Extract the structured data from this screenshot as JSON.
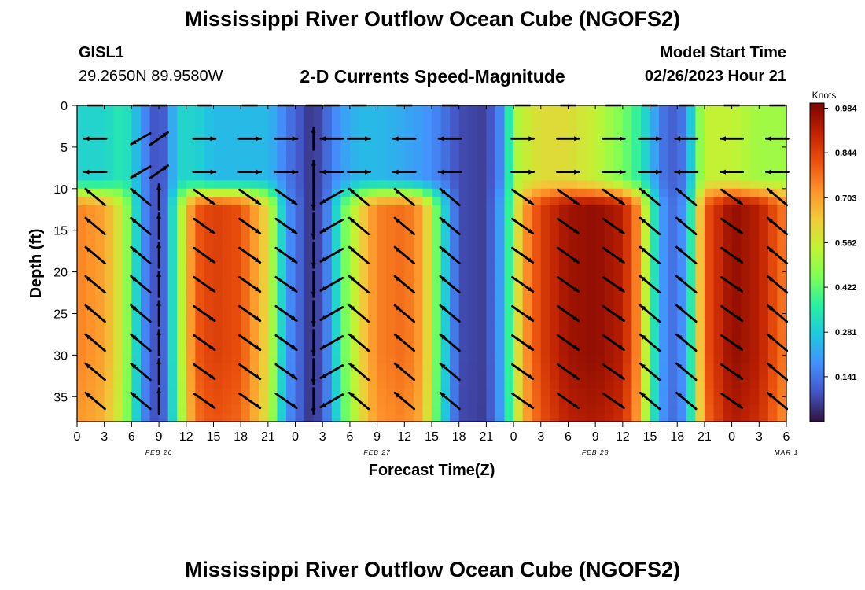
{
  "header": {
    "title": "Mississippi River Outflow Ocean Cube (NGOFS2)",
    "station": "GISL1",
    "location": "29.2650N  89.9580W",
    "plot_title": "2-D Currents Speed-Magnitude",
    "start_label": "Model Start Time",
    "start_value": "02/26/2023 Hour 21"
  },
  "footer_title": "Mississippi River Outflow Ocean Cube (NGOFS2)",
  "chart_data": {
    "type": "heatmap",
    "title": "2-D Currents Speed-Magnitude",
    "xlabel": "Forecast Time(Z)",
    "ylabel": "Depth (ft)",
    "x_tick_labels": [
      "0",
      "3",
      "6",
      "9",
      "12",
      "15",
      "18",
      "21",
      "0",
      "3",
      "6",
      "9",
      "12",
      "15",
      "18",
      "21",
      "0",
      "3",
      "6",
      "9",
      "12",
      "15",
      "18",
      "21",
      "0",
      "3",
      "6"
    ],
    "date_labels": [
      {
        "label": "FEB 26",
        "hour": 9
      },
      {
        "label": "FEB 27",
        "hour": 33
      },
      {
        "label": "FEB 28",
        "hour": 57
      },
      {
        "label": "MAR 1",
        "hour": 78
      }
    ],
    "xlim_hours": [
      0,
      78
    ],
    "ylim_ft": [
      38,
      0
    ],
    "y_ticks": [
      0,
      5,
      10,
      15,
      20,
      25,
      30,
      35
    ],
    "colorbar": {
      "label": "Knots",
      "ticks": [
        "0.984",
        "0.844",
        "0.703",
        "0.562",
        "0.422",
        "0.281",
        "0.141"
      ],
      "range": [
        0,
        1.0
      ],
      "colors": [
        "#30123b",
        "#4454c4",
        "#4490fe",
        "#1fc8de",
        "#29efa2",
        "#7dff56",
        "#c1f334",
        "#f1ca3a",
        "#fe922a",
        "#ea4f0d",
        "#be2102",
        "#7a0403"
      ]
    },
    "speed_by_hour": [
      {
        "hour": 0,
        "surface": 0.3,
        "deep": 0.75
      },
      {
        "hour": 3,
        "surface": 0.3,
        "deep": 0.7
      },
      {
        "hour": 5,
        "surface": 0.35,
        "deep": 0.55
      },
      {
        "hour": 6,
        "surface": 0.3,
        "deep": 0.4
      },
      {
        "hour": 7,
        "surface": 0.2,
        "deep": 0.2
      },
      {
        "hour": 9,
        "surface": 0.06,
        "deep": 0.06
      },
      {
        "hour": 10,
        "surface": 0.15,
        "deep": 0.18
      },
      {
        "hour": 11,
        "surface": 0.3,
        "deep": 0.45
      },
      {
        "hour": 13,
        "surface": 0.3,
        "deep": 0.8
      },
      {
        "hour": 15,
        "surface": 0.25,
        "deep": 0.85
      },
      {
        "hour": 18,
        "surface": 0.25,
        "deep": 0.82
      },
      {
        "hour": 21,
        "surface": 0.25,
        "deep": 0.6
      },
      {
        "hour": 22,
        "surface": 0.2,
        "deep": 0.4
      },
      {
        "hour": 23,
        "surface": 0.15,
        "deep": 0.2
      },
      {
        "hour": 26,
        "surface": 0.04,
        "deep": 0.03
      },
      {
        "hour": 28,
        "surface": 0.15,
        "deep": 0.2
      },
      {
        "hour": 29,
        "surface": 0.2,
        "deep": 0.4
      },
      {
        "hour": 31,
        "surface": 0.25,
        "deep": 0.6
      },
      {
        "hour": 33,
        "surface": 0.25,
        "deep": 0.75
      },
      {
        "hour": 36,
        "surface": 0.22,
        "deep": 0.78
      },
      {
        "hour": 38,
        "surface": 0.2,
        "deep": 0.7
      },
      {
        "hour": 40,
        "surface": 0.15,
        "deep": 0.35
      },
      {
        "hour": 42,
        "surface": 0.08,
        "deep": 0.08
      },
      {
        "hour": 45,
        "surface": 0.06,
        "deep": 0.06
      },
      {
        "hour": 47,
        "surface": 0.2,
        "deep": 0.25
      },
      {
        "hour": 48,
        "surface": 0.5,
        "deep": 0.5
      },
      {
        "hour": 49,
        "surface": 0.55,
        "deep": 0.7
      },
      {
        "hour": 51,
        "surface": 0.6,
        "deep": 0.85
      },
      {
        "hour": 54,
        "surface": 0.6,
        "deep": 0.95
      },
      {
        "hour": 57,
        "surface": 0.55,
        "deep": 0.97
      },
      {
        "hour": 60,
        "surface": 0.45,
        "deep": 0.92
      },
      {
        "hour": 62,
        "surface": 0.35,
        "deep": 0.7
      },
      {
        "hour": 63,
        "surface": 0.25,
        "deep": 0.4
      },
      {
        "hour": 65,
        "surface": 0.1,
        "deep": 0.12
      },
      {
        "hour": 67,
        "surface": 0.15,
        "deep": 0.2
      },
      {
        "hour": 68,
        "surface": 0.4,
        "deep": 0.5
      },
      {
        "hour": 69,
        "surface": 0.55,
        "deep": 0.8
      },
      {
        "hour": 72,
        "surface": 0.55,
        "deep": 0.97
      },
      {
        "hour": 75,
        "surface": 0.5,
        "deep": 0.92
      },
      {
        "hour": 77,
        "surface": 0.5,
        "deep": 0.8
      },
      {
        "hour": 78,
        "surface": 0.5,
        "deep": 0.75
      }
    ],
    "vector_columns": [
      {
        "hour": 2,
        "surf": "W",
        "deep": "NW"
      },
      {
        "hour": 7,
        "surf": "SW",
        "deep": "NW"
      },
      {
        "hour": 9,
        "surf": "NE",
        "deep": "N"
      },
      {
        "hour": 14,
        "surf": "E",
        "deep": "SE"
      },
      {
        "hour": 19,
        "surf": "E",
        "deep": "SE"
      },
      {
        "hour": 23,
        "surf": "E",
        "deep": "SE"
      },
      {
        "hour": 26,
        "surf": "N",
        "deep": "S"
      },
      {
        "hour": 28,
        "surf": "W",
        "deep": "SW"
      },
      {
        "hour": 31,
        "surf": "E",
        "deep": "NW"
      },
      {
        "hour": 36,
        "surf": "W",
        "deep": "NW"
      },
      {
        "hour": 41,
        "surf": "W",
        "deep": "NW"
      },
      {
        "hour": 49,
        "surf": "E",
        "deep": "SE"
      },
      {
        "hour": 54,
        "surf": "E",
        "deep": "SE"
      },
      {
        "hour": 59,
        "surf": "E",
        "deep": "SE"
      },
      {
        "hour": 63,
        "surf": "E",
        "deep": "NW"
      },
      {
        "hour": 67,
        "surf": "W",
        "deep": "NW"
      },
      {
        "hour": 72,
        "surf": "W",
        "deep": "SE"
      },
      {
        "hour": 77,
        "surf": "W",
        "deep": "NW"
      }
    ]
  }
}
